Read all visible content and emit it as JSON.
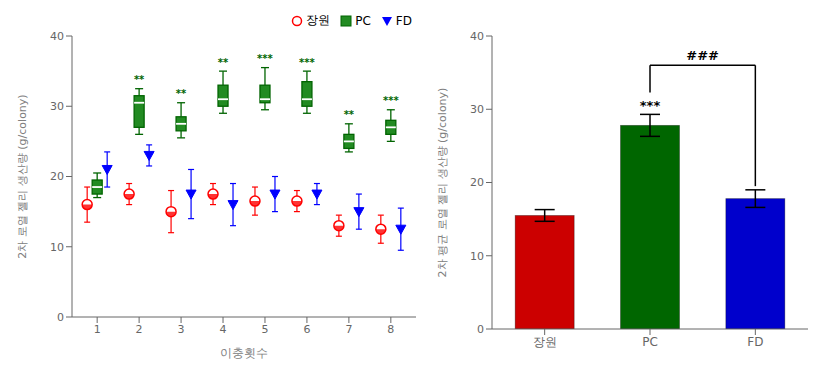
{
  "chart_data": [
    {
      "type": "scatter",
      "xlabel": "이충횟수",
      "ylabel": "2차 로열 젤리 생산량 (g/colony)",
      "x": [
        1,
        2,
        3,
        4,
        5,
        6,
        7,
        8
      ],
      "xlim": [
        0.4,
        8.6
      ],
      "xticks": [
        1,
        2,
        3,
        4,
        5,
        6,
        7,
        8
      ],
      "ylim": [
        0,
        40
      ],
      "yticks": [
        0,
        10,
        20,
        30,
        40
      ],
      "legend": "upper right",
      "series": [
        {
          "name": "장원",
          "type": "scatter",
          "marker": "o",
          "color": "red",
          "values": [
            16.0,
            17.5,
            15.0,
            17.5,
            16.5,
            16.5,
            13.0,
            12.5
          ],
          "errors": [
            2.5,
            1.5,
            3.0,
            1.5,
            2.0,
            1.5,
            1.5,
            2.0
          ]
        },
        {
          "name": "PC",
          "type": "box",
          "color": "#228B22",
          "q1": [
            17.5,
            27.0,
            26.5,
            30.0,
            30.5,
            30.0,
            24.0,
            26.0
          ],
          "median": [
            18.5,
            30.5,
            27.5,
            31.0,
            31.0,
            31.0,
            25.0,
            27.0
          ],
          "q3": [
            19.5,
            31.5,
            28.5,
            33.0,
            33.0,
            33.5,
            26.0,
            28.0
          ],
          "min": [
            17.0,
            26.0,
            25.5,
            29.0,
            29.5,
            29.0,
            23.5,
            25.0
          ],
          "max": [
            20.5,
            32.5,
            30.5,
            35.0,
            35.5,
            35.0,
            27.5,
            29.5
          ]
        },
        {
          "name": "FD",
          "type": "scatter",
          "marker": "v",
          "color": "blue",
          "values": [
            21.0,
            23.0,
            17.5,
            16.0,
            17.5,
            17.5,
            15.0,
            12.5
          ],
          "errors": [
            2.5,
            1.5,
            3.5,
            3.0,
            2.5,
            1.5,
            2.5,
            3.0
          ]
        }
      ],
      "annotations": [
        {
          "x": 2,
          "label": "**"
        },
        {
          "x": 3,
          "label": "**"
        },
        {
          "x": 4,
          "label": "**"
        },
        {
          "x": 5,
          "label": "***"
        },
        {
          "x": 6,
          "label": "***"
        },
        {
          "x": 7,
          "label": "**"
        },
        {
          "x": 8,
          "label": "***"
        }
      ]
    },
    {
      "type": "bar",
      "ylabel": "2차 평균 로열 젤리 생산량 (g/colony)",
      "categories": [
        "장원",
        "PC",
        "FD"
      ],
      "values": [
        15.5,
        27.8,
        17.8
      ],
      "errors": [
        0.8,
        1.5,
        1.2
      ],
      "colors": [
        "#cc0000",
        "#006600",
        "#0000cc"
      ],
      "ylim": [
        0,
        40
      ],
      "yticks": [
        0,
        10,
        20,
        30,
        40
      ],
      "annotations": [
        {
          "category": "PC",
          "label": "***"
        },
        {
          "from": "PC",
          "to": "FD",
          "y": 36,
          "label": "###"
        }
      ]
    }
  ]
}
